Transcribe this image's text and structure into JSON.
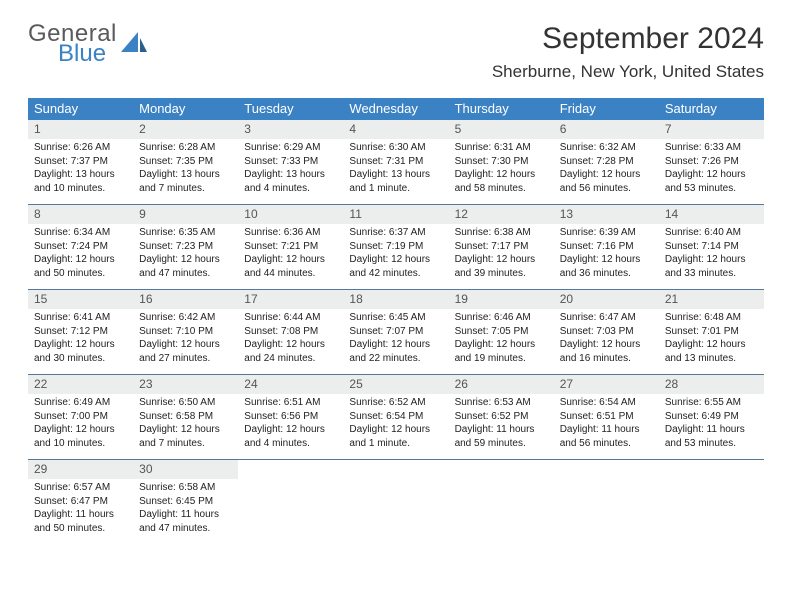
{
  "brand": {
    "line1": "General",
    "line2": "Blue"
  },
  "title": "September 2024",
  "location": "Sherburne, New York, United States",
  "colors": {
    "header_bg": "#3b82c4",
    "day_num_bg": "#eceded",
    "week_divider": "#557799",
    "text": "#333333",
    "body_text": "#222222"
  },
  "typography": {
    "title_fontsize": 30,
    "location_fontsize": 17,
    "weekday_fontsize": 13,
    "daynum_fontsize": 12,
    "body_fontsize": 10
  },
  "weekdays": [
    "Sunday",
    "Monday",
    "Tuesday",
    "Wednesday",
    "Thursday",
    "Friday",
    "Saturday"
  ],
  "weeks": [
    [
      {
        "n": "1",
        "sunrise": "Sunrise: 6:26 AM",
        "sunset": "Sunset: 7:37 PM",
        "day1": "Daylight: 13 hours",
        "day2": "and 10 minutes."
      },
      {
        "n": "2",
        "sunrise": "Sunrise: 6:28 AM",
        "sunset": "Sunset: 7:35 PM",
        "day1": "Daylight: 13 hours",
        "day2": "and 7 minutes."
      },
      {
        "n": "3",
        "sunrise": "Sunrise: 6:29 AM",
        "sunset": "Sunset: 7:33 PM",
        "day1": "Daylight: 13 hours",
        "day2": "and 4 minutes."
      },
      {
        "n": "4",
        "sunrise": "Sunrise: 6:30 AM",
        "sunset": "Sunset: 7:31 PM",
        "day1": "Daylight: 13 hours",
        "day2": "and 1 minute."
      },
      {
        "n": "5",
        "sunrise": "Sunrise: 6:31 AM",
        "sunset": "Sunset: 7:30 PM",
        "day1": "Daylight: 12 hours",
        "day2": "and 58 minutes."
      },
      {
        "n": "6",
        "sunrise": "Sunrise: 6:32 AM",
        "sunset": "Sunset: 7:28 PM",
        "day1": "Daylight: 12 hours",
        "day2": "and 56 minutes."
      },
      {
        "n": "7",
        "sunrise": "Sunrise: 6:33 AM",
        "sunset": "Sunset: 7:26 PM",
        "day1": "Daylight: 12 hours",
        "day2": "and 53 minutes."
      }
    ],
    [
      {
        "n": "8",
        "sunrise": "Sunrise: 6:34 AM",
        "sunset": "Sunset: 7:24 PM",
        "day1": "Daylight: 12 hours",
        "day2": "and 50 minutes."
      },
      {
        "n": "9",
        "sunrise": "Sunrise: 6:35 AM",
        "sunset": "Sunset: 7:23 PM",
        "day1": "Daylight: 12 hours",
        "day2": "and 47 minutes."
      },
      {
        "n": "10",
        "sunrise": "Sunrise: 6:36 AM",
        "sunset": "Sunset: 7:21 PM",
        "day1": "Daylight: 12 hours",
        "day2": "and 44 minutes."
      },
      {
        "n": "11",
        "sunrise": "Sunrise: 6:37 AM",
        "sunset": "Sunset: 7:19 PM",
        "day1": "Daylight: 12 hours",
        "day2": "and 42 minutes."
      },
      {
        "n": "12",
        "sunrise": "Sunrise: 6:38 AM",
        "sunset": "Sunset: 7:17 PM",
        "day1": "Daylight: 12 hours",
        "day2": "and 39 minutes."
      },
      {
        "n": "13",
        "sunrise": "Sunrise: 6:39 AM",
        "sunset": "Sunset: 7:16 PM",
        "day1": "Daylight: 12 hours",
        "day2": "and 36 minutes."
      },
      {
        "n": "14",
        "sunrise": "Sunrise: 6:40 AM",
        "sunset": "Sunset: 7:14 PM",
        "day1": "Daylight: 12 hours",
        "day2": "and 33 minutes."
      }
    ],
    [
      {
        "n": "15",
        "sunrise": "Sunrise: 6:41 AM",
        "sunset": "Sunset: 7:12 PM",
        "day1": "Daylight: 12 hours",
        "day2": "and 30 minutes."
      },
      {
        "n": "16",
        "sunrise": "Sunrise: 6:42 AM",
        "sunset": "Sunset: 7:10 PM",
        "day1": "Daylight: 12 hours",
        "day2": "and 27 minutes."
      },
      {
        "n": "17",
        "sunrise": "Sunrise: 6:44 AM",
        "sunset": "Sunset: 7:08 PM",
        "day1": "Daylight: 12 hours",
        "day2": "and 24 minutes."
      },
      {
        "n": "18",
        "sunrise": "Sunrise: 6:45 AM",
        "sunset": "Sunset: 7:07 PM",
        "day1": "Daylight: 12 hours",
        "day2": "and 22 minutes."
      },
      {
        "n": "19",
        "sunrise": "Sunrise: 6:46 AM",
        "sunset": "Sunset: 7:05 PM",
        "day1": "Daylight: 12 hours",
        "day2": "and 19 minutes."
      },
      {
        "n": "20",
        "sunrise": "Sunrise: 6:47 AM",
        "sunset": "Sunset: 7:03 PM",
        "day1": "Daylight: 12 hours",
        "day2": "and 16 minutes."
      },
      {
        "n": "21",
        "sunrise": "Sunrise: 6:48 AM",
        "sunset": "Sunset: 7:01 PM",
        "day1": "Daylight: 12 hours",
        "day2": "and 13 minutes."
      }
    ],
    [
      {
        "n": "22",
        "sunrise": "Sunrise: 6:49 AM",
        "sunset": "Sunset: 7:00 PM",
        "day1": "Daylight: 12 hours",
        "day2": "and 10 minutes."
      },
      {
        "n": "23",
        "sunrise": "Sunrise: 6:50 AM",
        "sunset": "Sunset: 6:58 PM",
        "day1": "Daylight: 12 hours",
        "day2": "and 7 minutes."
      },
      {
        "n": "24",
        "sunrise": "Sunrise: 6:51 AM",
        "sunset": "Sunset: 6:56 PM",
        "day1": "Daylight: 12 hours",
        "day2": "and 4 minutes."
      },
      {
        "n": "25",
        "sunrise": "Sunrise: 6:52 AM",
        "sunset": "Sunset: 6:54 PM",
        "day1": "Daylight: 12 hours",
        "day2": "and 1 minute."
      },
      {
        "n": "26",
        "sunrise": "Sunrise: 6:53 AM",
        "sunset": "Sunset: 6:52 PM",
        "day1": "Daylight: 11 hours",
        "day2": "and 59 minutes."
      },
      {
        "n": "27",
        "sunrise": "Sunrise: 6:54 AM",
        "sunset": "Sunset: 6:51 PM",
        "day1": "Daylight: 11 hours",
        "day2": "and 56 minutes."
      },
      {
        "n": "28",
        "sunrise": "Sunrise: 6:55 AM",
        "sunset": "Sunset: 6:49 PM",
        "day1": "Daylight: 11 hours",
        "day2": "and 53 minutes."
      }
    ],
    [
      {
        "n": "29",
        "sunrise": "Sunrise: 6:57 AM",
        "sunset": "Sunset: 6:47 PM",
        "day1": "Daylight: 11 hours",
        "day2": "and 50 minutes."
      },
      {
        "n": "30",
        "sunrise": "Sunrise: 6:58 AM",
        "sunset": "Sunset: 6:45 PM",
        "day1": "Daylight: 11 hours",
        "day2": "and 47 minutes."
      },
      {
        "empty": true
      },
      {
        "empty": true
      },
      {
        "empty": true
      },
      {
        "empty": true
      },
      {
        "empty": true
      }
    ]
  ]
}
